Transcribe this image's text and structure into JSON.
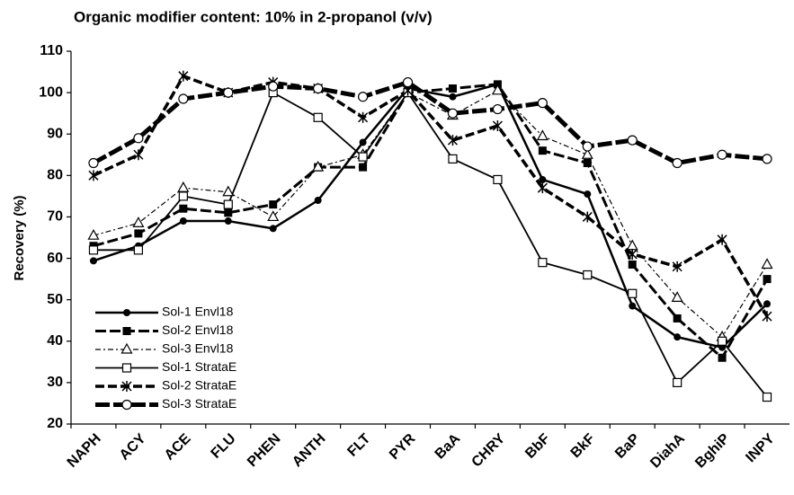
{
  "chart_data": {
    "type": "line",
    "title": "Organic modifier content: 10% in 2-propanol (v/v)",
    "y_label": "Recovery (%)",
    "categories": [
      "NAPH",
      "ACY",
      "ACE",
      "FLU",
      "PHEN",
      "ANTH",
      "FLT",
      "PYR",
      "BaA",
      "CHRY",
      "BbF",
      "BkF",
      "BaP",
      "DiahA",
      "BghiP",
      "INPY"
    ],
    "ylim": [
      20,
      110
    ],
    "yticks": [
      20,
      30,
      40,
      50,
      60,
      70,
      80,
      90,
      100,
      110
    ],
    "grid": false,
    "legend": "lower left",
    "series": [
      {
        "name": "Sol-1 Envl18",
        "color": "#000000",
        "marker": "filled-circle",
        "dash": "none",
        "width": 2.5,
        "values": [
          59.4,
          63,
          69,
          69,
          67.2,
          74,
          88,
          101,
          99,
          102,
          79,
          75.5,
          48.5,
          41,
          38.5,
          49
        ]
      },
      {
        "name": "Sol-2 Envl18",
        "color": "#000000",
        "marker": "filled-square",
        "dash": "12,4",
        "width": 3,
        "values": [
          63,
          66,
          72,
          71,
          73,
          82,
          82,
          100,
          101,
          102,
          86,
          83,
          58.5,
          45.5,
          36,
          55
        ]
      },
      {
        "name": "Sol-3 Envl18",
        "color": "#000000",
        "marker": "open-triangle",
        "dash": "6,3,2,3",
        "width": 1.2,
        "values": [
          65.5,
          68.5,
          77,
          76,
          70,
          82,
          85,
          100,
          94.5,
          100.5,
          89.5,
          85,
          63,
          50.5,
          41,
          58.5
        ]
      },
      {
        "name": "Sol-1 StrataE",
        "color": "#000000",
        "marker": "open-square",
        "dash": "none",
        "width": 1.8,
        "values": [
          62,
          62,
          75,
          73,
          100,
          94,
          84.5,
          100,
          84,
          79,
          59,
          56,
          51.5,
          30,
          40,
          26.5
        ]
      },
      {
        "name": "Sol-2 StrataE",
        "color": "#000000",
        "marker": "asterisk",
        "dash": "10,4",
        "width": 3.5,
        "values": [
          80,
          85,
          104,
          100,
          102.5,
          101,
          94,
          100.5,
          88.5,
          92,
          77,
          70,
          61,
          58,
          64.5,
          46
        ]
      },
      {
        "name": "Sol-3 StrataE",
        "color": "#000000",
        "marker": "open-circle",
        "dash": "16,4",
        "width": 5,
        "values": [
          83,
          89,
          98.5,
          100,
          101.5,
          101,
          99,
          102.5,
          95,
          96,
          97.5,
          87,
          88.5,
          83,
          85,
          84
        ]
      }
    ]
  }
}
